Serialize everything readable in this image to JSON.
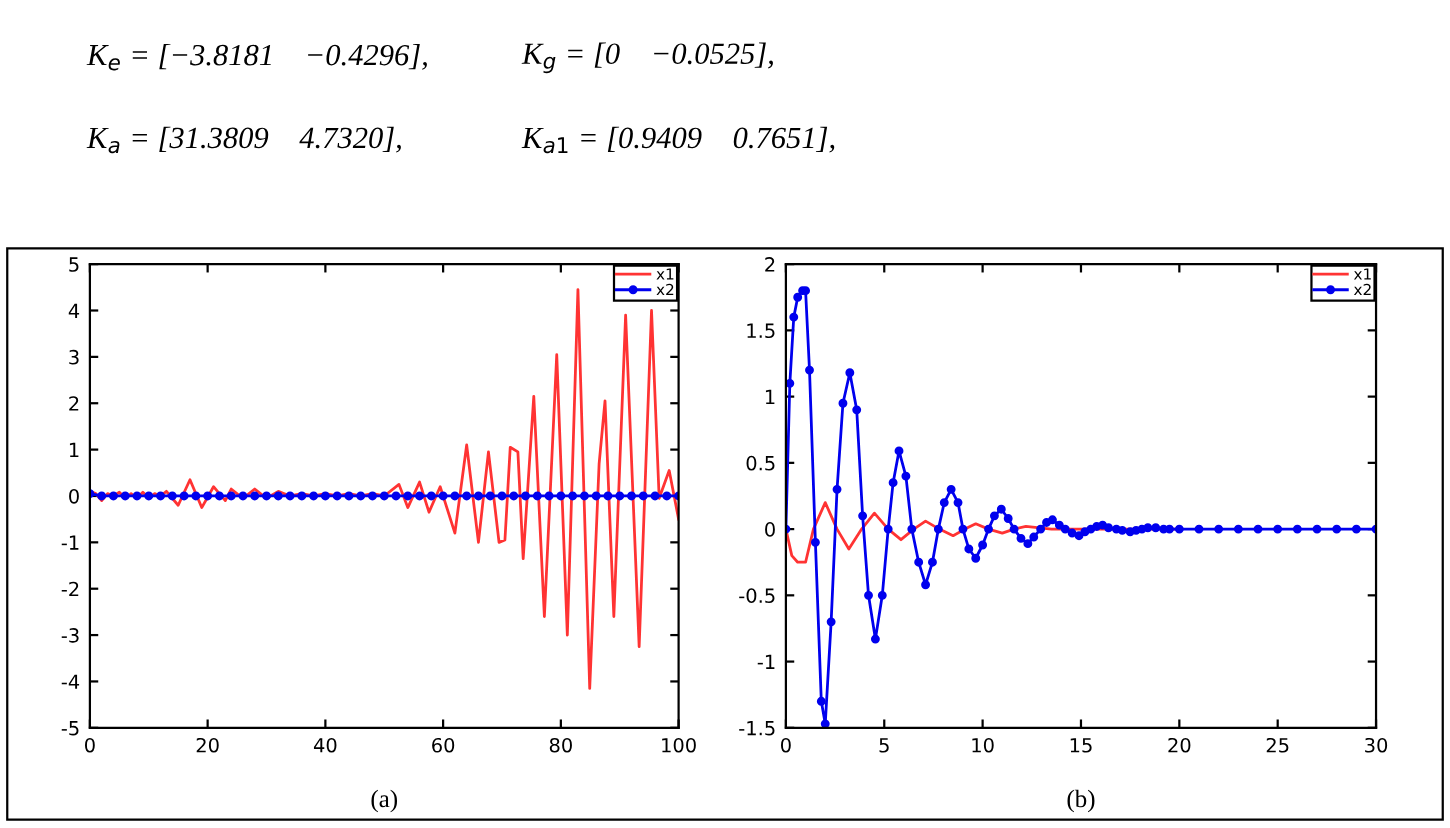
{
  "chart_data": [
    {
      "type": "line",
      "xlabel": "(a)",
      "annotations": [
        "K$_{e}$ = [−3.8181    −0.4296],",
        "K$_{g}$ = [0    −0.0525],",
        "K$_{a}$ = [31.3809    4.7320],",
        "K$_{a1}$ = [0.9409    0.7651],"
      ],
      "xlim": [
        0,
        100
      ],
      "ylim": [
        -5,
        5
      ],
      "xticks": [
        0,
        20,
        40,
        60,
        80,
        100
      ],
      "yticks": [
        -5,
        -4,
        -3,
        -2,
        -1,
        0,
        1,
        2,
        3,
        4,
        5
      ],
      "grid": false,
      "legend": "top right",
      "series": [
        {
          "name": "x1",
          "color": "#ff3333",
          "marker": "none",
          "x": [
            0,
            1,
            2,
            3,
            4,
            5,
            6,
            7,
            8,
            9,
            10,
            11,
            12,
            13,
            15,
            17,
            19,
            21,
            23,
            24,
            26,
            28,
            30,
            32,
            34,
            36,
            38,
            40,
            42,
            44,
            46,
            48,
            50,
            52.5,
            54,
            56,
            57.6,
            59.5,
            62,
            64,
            66,
            67.7,
            69.5,
            70.5,
            71.4,
            72.7,
            73.6,
            75.4,
            77.2,
            79.3,
            81.1,
            82.9,
            84.9,
            86.5,
            87.5,
            89,
            91,
            93.3,
            95.4,
            96.7,
            98.4,
            100
          ],
          "values": [
            0.1,
            0.05,
            -0.1,
            0.05,
            0.0,
            0.08,
            -0.05,
            0.05,
            -0.05,
            0.08,
            -0.05,
            0.05,
            0.0,
            0.1,
            -0.2,
            0.35,
            -0.25,
            0.2,
            -0.1,
            0.15,
            -0.05,
            0.15,
            -0.05,
            0.1,
            0.0,
            0.05,
            0.0,
            0.05,
            0.0,
            0.05,
            0.0,
            0.05,
            0.0,
            0.25,
            -0.25,
            0.3,
            -0.35,
            0.2,
            -0.8,
            1.1,
            -1.0,
            0.95,
            -1.0,
            -0.95,
            1.05,
            0.95,
            -1.35,
            2.15,
            -2.6,
            3.05,
            -3.0,
            4.45,
            -4.15,
            0.7,
            2.05,
            -2.6,
            3.9,
            -3.25,
            4.0,
            -0.05,
            0.55,
            -0.5
          ]
        },
        {
          "name": "x2",
          "color": "#0000ee",
          "marker": "circle",
          "x": [
            0,
            2,
            4,
            6,
            8,
            10,
            12,
            14,
            16,
            18,
            20,
            22,
            24,
            26,
            28,
            30,
            32,
            34,
            36,
            38,
            40,
            42,
            44,
            46,
            48,
            50,
            52,
            54,
            56,
            58,
            60,
            62,
            64,
            66,
            68,
            70,
            72,
            74,
            76,
            78,
            80,
            82,
            84,
            86,
            88,
            90,
            92,
            94,
            96,
            98,
            100
          ],
          "values": [
            0.05,
            0.0,
            0.0,
            0.0,
            0.0,
            0.0,
            0.0,
            0.0,
            0.0,
            0.0,
            0.0,
            0.0,
            0.0,
            0.0,
            0.0,
            0.0,
            0.0,
            0.0,
            0.0,
            0.0,
            0.0,
            0.0,
            0.0,
            0.0,
            0.0,
            0.0,
            0.0,
            0.0,
            0.0,
            0.0,
            0.0,
            0.0,
            0.0,
            0.0,
            0.0,
            0.0,
            0.0,
            0.0,
            0.0,
            0.0,
            0.0,
            0.0,
            0.0,
            0.0,
            0.0,
            0.0,
            0.0,
            0.0,
            0.0,
            0.0,
            0.0
          ]
        }
      ]
    },
    {
      "type": "line",
      "xlabel": "(b)",
      "xlim": [
        0,
        30
      ],
      "ylim": [
        -1.5,
        2
      ],
      "xticks": [
        0,
        5,
        10,
        15,
        20,
        25,
        30
      ],
      "yticks": [
        -1.5,
        -1,
        -0.5,
        0,
        0.5,
        1,
        1.5,
        2
      ],
      "grid": false,
      "legend": "top right",
      "series": [
        {
          "name": "x1",
          "color": "#ff3333",
          "marker": "none",
          "x": [
            0,
            0.3,
            0.6,
            1.0,
            1.4,
            2.0,
            2.6,
            3.2,
            3.85,
            4.5,
            5.2,
            5.85,
            6.5,
            7.1,
            7.8,
            8.5,
            9.1,
            9.65,
            10.3,
            11.0,
            11.6,
            12.2,
            13.5,
            15,
            20
          ],
          "values": [
            0,
            -0.2,
            -0.25,
            -0.25,
            0.0,
            0.2,
            0.0,
            -0.15,
            0.0,
            0.12,
            0.0,
            -0.08,
            0.0,
            0.06,
            0.0,
            -0.05,
            0.0,
            0.04,
            0.0,
            -0.03,
            0.0,
            0.02,
            0.0,
            0.0,
            0.0
          ]
        },
        {
          "name": "x2",
          "color": "#0000ee",
          "marker": "circle",
          "x": [
            0,
            0.2,
            0.4,
            0.6,
            0.85,
            1.0,
            1.2,
            1.5,
            1.8,
            2.0,
            2.3,
            2.6,
            2.9,
            3.25,
            3.6,
            3.9,
            4.2,
            4.55,
            4.9,
            5.2,
            5.45,
            5.75,
            6.1,
            6.4,
            6.75,
            7.1,
            7.45,
            7.75,
            8.05,
            8.4,
            8.75,
            9.0,
            9.3,
            9.65,
            10.0,
            10.3,
            10.6,
            10.95,
            11.3,
            11.6,
            11.95,
            12.3,
            12.6,
            12.95,
            13.25,
            13.55,
            13.9,
            14.2,
            14.55,
            14.9,
            15.2,
            15.5,
            15.8,
            16.1,
            16.4,
            16.8,
            17.1,
            17.5,
            17.8,
            18.1,
            18.4,
            18.8,
            19.2,
            19.5,
            20,
            21,
            22,
            23,
            24,
            25,
            26,
            27,
            28,
            29,
            30
          ],
          "values": [
            0,
            1.1,
            1.6,
            1.75,
            1.8,
            1.8,
            1.2,
            -0.1,
            -1.3,
            -1.47,
            -0.7,
            0.3,
            0.95,
            1.18,
            0.9,
            0.1,
            -0.5,
            -0.83,
            -0.5,
            0.0,
            0.35,
            0.59,
            0.4,
            0.0,
            -0.25,
            -0.42,
            -0.25,
            0.0,
            0.2,
            0.3,
            0.2,
            0.0,
            -0.15,
            -0.22,
            -0.12,
            0.0,
            0.1,
            0.15,
            0.08,
            0.0,
            -0.07,
            -0.11,
            -0.06,
            0.0,
            0.05,
            0.07,
            0.03,
            0.0,
            -0.03,
            -0.05,
            -0.02,
            0.0,
            0.02,
            0.03,
            0.01,
            0.0,
            -0.01,
            -0.02,
            -0.01,
            0.0,
            0.01,
            0.01,
            0.0,
            0.0,
            0.0,
            0.0,
            0.0,
            0.0,
            0.0,
            0.0,
            0.0,
            0.0,
            0.0,
            0.0,
            0.0
          ]
        }
      ]
    }
  ]
}
